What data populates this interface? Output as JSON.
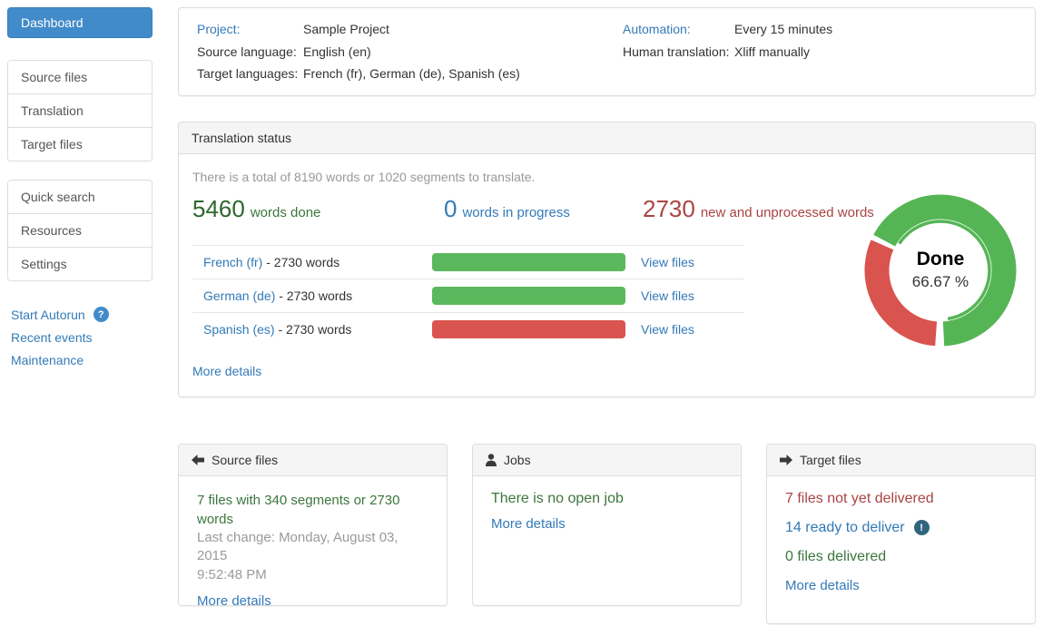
{
  "sidebar": {
    "dashboard_label": "Dashboard",
    "nav_group1": [
      {
        "label": "Source files"
      },
      {
        "label": "Translation"
      },
      {
        "label": "Target files"
      }
    ],
    "nav_group2": [
      {
        "label": "Quick search"
      },
      {
        "label": "Resources"
      },
      {
        "label": "Settings"
      }
    ],
    "links": {
      "start_autorun": "Start Autorun",
      "recent_events": "Recent events",
      "maintenance": "Maintenance"
    },
    "help_icon_glyph": "?"
  },
  "project_info": {
    "project_label": "Project:",
    "project_value": "Sample Project",
    "source_language_label": "Source language:",
    "source_language_value": "English (en)",
    "target_languages_label": "Target languages:",
    "target_languages_value": "French (fr), German (de), Spanish (es)",
    "automation_label": "Automation:",
    "automation_value": "Every 15 minutes",
    "human_translation_label": "Human translation:",
    "human_translation_value": "Xliff manually"
  },
  "translation_status": {
    "title": "Translation status",
    "summary": "There is a total of 8190 words or 1020 segments to translate.",
    "stats": [
      {
        "value": "5460",
        "label": "words done",
        "color": "#2d672d"
      },
      {
        "value": "0",
        "label": "words in progress",
        "color": "#337ab7"
      },
      {
        "value": "2730",
        "label": "new and unprocessed words",
        "color": "#a94442"
      }
    ],
    "languages": [
      {
        "name": "French (fr)",
        "suffix": " - 2730 words",
        "progress": 100,
        "bar_color": "#5cb85c",
        "action": "View files"
      },
      {
        "name": "German (de)",
        "suffix": " - 2730 words",
        "progress": 100,
        "bar_color": "#5cb85c",
        "action": "View files"
      },
      {
        "name": "Spanish (es)",
        "suffix": " - 2730 words",
        "progress": 100,
        "bar_color": "#d9534f",
        "action": "View files"
      }
    ],
    "more_details": "More details",
    "donut": {
      "label": "Done",
      "percent_text": "66.67 %",
      "done_percent": 66.67,
      "remaining_percent": 33.33,
      "done_color": "#55b555",
      "remaining_color": "#d9534f"
    }
  },
  "bottom_panels": {
    "source_files": {
      "title": "Source files",
      "line1": "7 files with 340 segments or 2730 words",
      "line2": "Last change: Monday, August 03, 2015",
      "line3": "9:52:48 PM",
      "more_details": "More details"
    },
    "jobs": {
      "title": "Jobs",
      "line1": "There is no open job",
      "more_details": "More details"
    },
    "target_files": {
      "title": "Target files",
      "not_delivered": "7 files not yet delivered",
      "ready_to_deliver": "14 ready to deliver",
      "delivered": "0 files delivered",
      "alert_icon_glyph": "!",
      "more_details": "More details"
    }
  },
  "colors": {
    "link_blue": "#337ab7",
    "primary_button": "#428bca",
    "success_text": "#3c763d",
    "danger_text": "#a94442",
    "bar_green": "#5cb85c",
    "bar_red": "#d9534f",
    "panel_border": "#dddddd",
    "panel_heading_bg": "#f5f5f5",
    "muted_text": "#999999"
  }
}
